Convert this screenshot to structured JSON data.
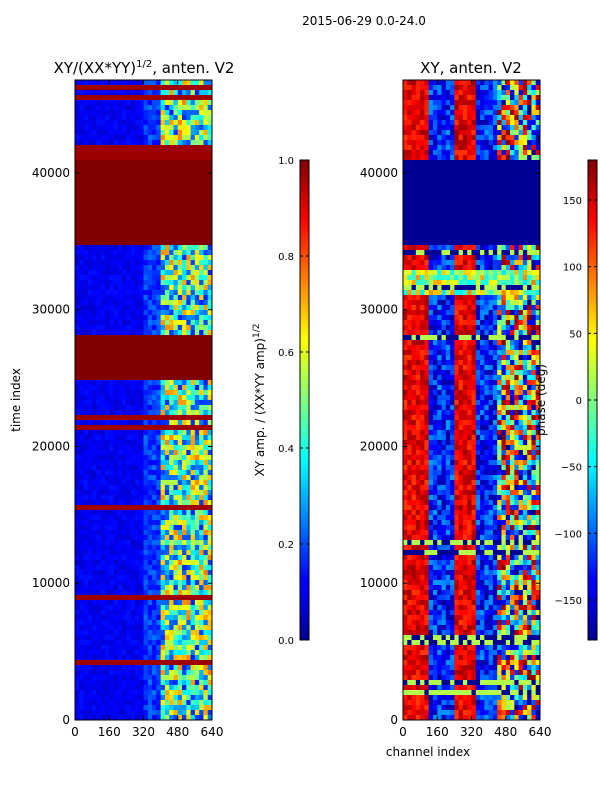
{
  "figure": {
    "suptitle": "2015-06-29 0.0-24.0",
    "shared_ylabel": "time index",
    "shared_xlabel": "channel index"
  },
  "chart_data": [
    {
      "type": "heatmap",
      "title": "XY/(XX*YY)^{1/2}, anten. V2",
      "title_main": "XY/(XX*YY)",
      "title_sup": "1/2",
      "title_rest": ", anten. V2",
      "x_range": [
        0,
        640
      ],
      "y_range": [
        0,
        46800
      ],
      "x_ticks": [
        0,
        160,
        320,
        480,
        640
      ],
      "y_ticks": [
        0,
        10000,
        20000,
        30000,
        40000
      ],
      "colorbar": {
        "label": "XY amp. / (XX*YY amp)^{1/2}",
        "label_main": "XY amp. / (XX*YY amp)",
        "label_sup": "1/2",
        "range": [
          0,
          1
        ],
        "ticks": [
          0.0,
          0.2,
          0.4,
          0.6,
          0.8,
          1.0
        ],
        "tick_labels": [
          "0.0",
          "0.2",
          "0.4",
          "0.6",
          "0.8",
          "1.0"
        ]
      },
      "flagged_bands": [
        [
          25000,
          28000
        ],
        [
          34800,
          41000
        ]
      ]
    },
    {
      "type": "heatmap",
      "title": "XY, anten. V2",
      "x_range": [
        0,
        640
      ],
      "y_range": [
        0,
        46800
      ],
      "x_ticks": [
        0,
        160,
        320,
        480,
        640
      ],
      "y_ticks": [
        0,
        10000,
        20000,
        30000,
        40000
      ],
      "colorbar": {
        "label": "phase (deg)",
        "range": [
          -180,
          180
        ],
        "ticks": [
          -150,
          -100,
          -50,
          0,
          50,
          100,
          150
        ],
        "tick_labels": [
          "−150",
          "−100",
          "−50",
          "0",
          "50",
          "100",
          "150"
        ]
      },
      "flagged_bands": [
        [
          34800,
          41000
        ]
      ],
      "noisy_band": [
        31000,
        33000
      ]
    }
  ]
}
